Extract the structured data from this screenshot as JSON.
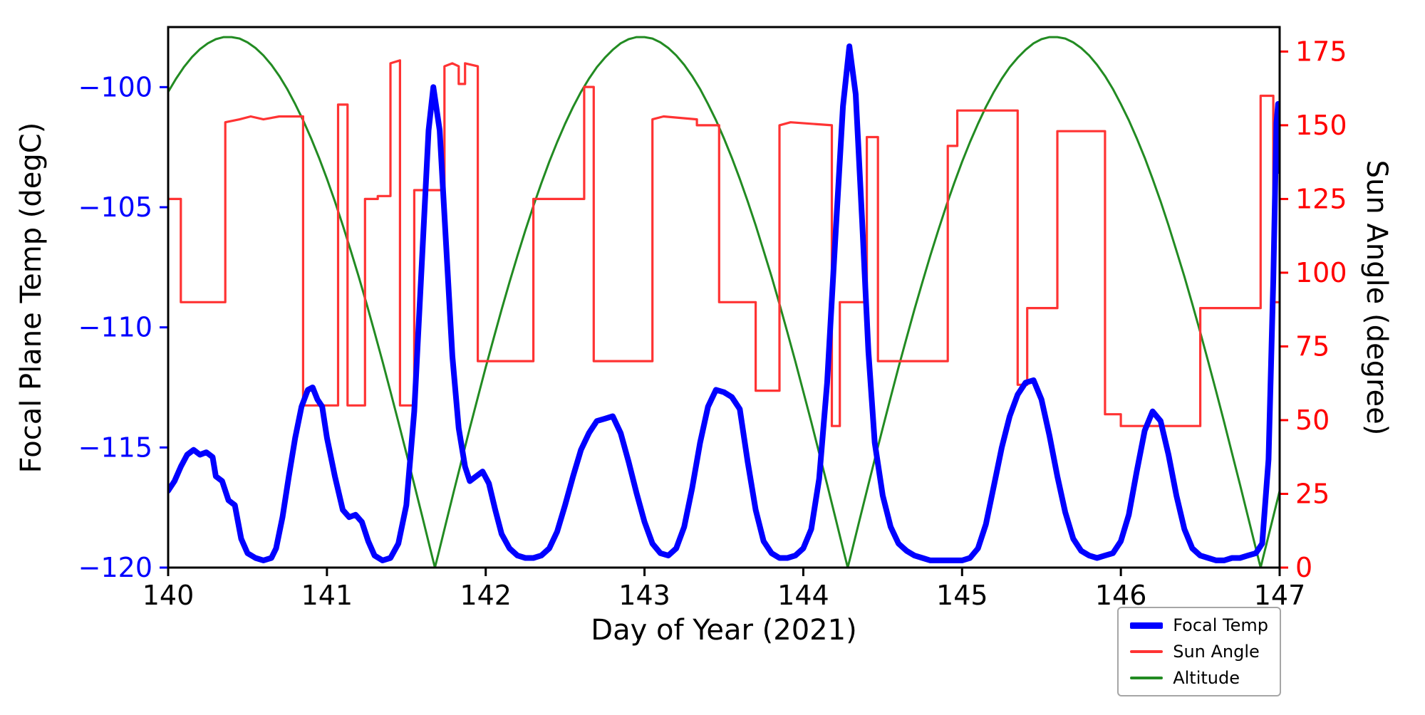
{
  "figure": {
    "background": "#ffffff"
  },
  "chart_data": {
    "type": "line",
    "title": "",
    "x_label": "Day of Year (2021)",
    "y_left_label": "Focal Plane Temp (degC)",
    "y_right_label": "Sun Angle (degree)",
    "x_range": [
      140,
      147
    ],
    "x_ticks": [
      140,
      141,
      142,
      143,
      144,
      145,
      146,
      147
    ],
    "y_left": {
      "range": [
        -120,
        -97.5
      ],
      "ticks": [
        -100,
        -105,
        -110,
        -115,
        -120
      ],
      "color": "#0000ff"
    },
    "y_right": {
      "range": [
        0,
        183.3
      ],
      "ticks": [
        0,
        25,
        50,
        75,
        100,
        125,
        150,
        175
      ],
      "color": "#ff0000"
    },
    "grid": false,
    "spine_color": "#000000",
    "legend": {
      "position": "lower-right-outside",
      "entries": [
        {
          "label": "Focal Temp",
          "color": "#0000ff",
          "line_width": "thick"
        },
        {
          "label": "Sun Angle",
          "color": "#ff3333",
          "line_width": "thin"
        },
        {
          "label": "Altitude",
          "color": "#228b22",
          "line_width": "thin"
        }
      ]
    },
    "series": [
      {
        "name": "Focal Temp",
        "axis": "left",
        "color": "#0000ff",
        "stroke_width": 8,
        "x": [
          140.0,
          140.04,
          140.08,
          140.12,
          140.16,
          140.2,
          140.24,
          140.28,
          140.3,
          140.34,
          140.38,
          140.42,
          140.46,
          140.5,
          140.55,
          140.6,
          140.65,
          140.68,
          140.72,
          140.76,
          140.8,
          140.84,
          140.88,
          140.91,
          140.94,
          140.97,
          141.0,
          141.05,
          141.1,
          141.14,
          141.18,
          141.22,
          141.26,
          141.3,
          141.35,
          141.4,
          141.45,
          141.5,
          141.55,
          141.6,
          141.64,
          141.67,
          141.71,
          141.75,
          141.79,
          141.83,
          141.87,
          141.9,
          141.94,
          141.98,
          142.02,
          142.06,
          142.1,
          142.15,
          142.2,
          142.25,
          142.3,
          142.35,
          142.4,
          142.45,
          142.5,
          142.55,
          142.6,
          142.65,
          142.7,
          142.75,
          142.8,
          142.85,
          142.9,
          142.95,
          143.0,
          143.05,
          143.1,
          143.15,
          143.2,
          143.25,
          143.3,
          143.35,
          143.4,
          143.45,
          143.5,
          143.55,
          143.6,
          143.65,
          143.7,
          143.75,
          143.8,
          143.85,
          143.9,
          143.95,
          144.0,
          144.05,
          144.1,
          144.15,
          144.2,
          144.25,
          144.29,
          144.33,
          144.37,
          144.41,
          144.45,
          144.5,
          144.55,
          144.6,
          144.65,
          144.7,
          144.75,
          144.8,
          144.85,
          144.9,
          144.95,
          145.0,
          145.05,
          145.1,
          145.15,
          145.2,
          145.25,
          145.3,
          145.35,
          145.4,
          145.45,
          145.5,
          145.55,
          145.6,
          145.65,
          145.7,
          145.75,
          145.8,
          145.85,
          145.9,
          145.95,
          146.0,
          146.05,
          146.1,
          146.15,
          146.2,
          146.25,
          146.3,
          146.35,
          146.4,
          146.45,
          146.5,
          146.55,
          146.6,
          146.65,
          146.7,
          146.75,
          146.8,
          146.85,
          146.89,
          146.93,
          146.96,
          146.98,
          146.99,
          147.0
        ],
        "y": [
          -116.8,
          -116.4,
          -115.8,
          -115.3,
          -115.1,
          -115.3,
          -115.2,
          -115.4,
          -116.2,
          -116.4,
          -117.2,
          -117.4,
          -118.8,
          -119.4,
          -119.6,
          -119.7,
          -119.6,
          -119.2,
          -117.9,
          -116.2,
          -114.6,
          -113.3,
          -112.6,
          -112.5,
          -113.0,
          -113.3,
          -114.6,
          -116.2,
          -117.6,
          -117.9,
          -117.8,
          -118.1,
          -118.9,
          -119.5,
          -119.7,
          -119.6,
          -119.0,
          -117.4,
          -113.5,
          -107.0,
          -101.8,
          -100.0,
          -101.8,
          -106.5,
          -111.2,
          -114.2,
          -115.8,
          -116.4,
          -116.2,
          -116.0,
          -116.5,
          -117.6,
          -118.6,
          -119.2,
          -119.5,
          -119.6,
          -119.6,
          -119.5,
          -119.2,
          -118.5,
          -117.4,
          -116.2,
          -115.1,
          -114.4,
          -113.9,
          -113.8,
          -113.7,
          -114.4,
          -115.6,
          -116.9,
          -118.1,
          -119.0,
          -119.4,
          -119.5,
          -119.2,
          -118.3,
          -116.7,
          -114.8,
          -113.3,
          -112.6,
          -112.7,
          -112.9,
          -113.4,
          -115.6,
          -117.6,
          -118.9,
          -119.4,
          -119.6,
          -119.6,
          -119.5,
          -119.2,
          -118.4,
          -116.3,
          -112.3,
          -106.5,
          -100.8,
          -98.3,
          -100.3,
          -105.5,
          -111.0,
          -114.8,
          -117.0,
          -118.3,
          -119.0,
          -119.3,
          -119.5,
          -119.6,
          -119.7,
          -119.7,
          -119.7,
          -119.7,
          -119.7,
          -119.6,
          -119.2,
          -118.2,
          -116.6,
          -115.0,
          -113.7,
          -112.8,
          -112.3,
          -112.2,
          -113.0,
          -114.5,
          -116.2,
          -117.7,
          -118.8,
          -119.3,
          -119.5,
          -119.6,
          -119.5,
          -119.4,
          -118.9,
          -117.8,
          -116.0,
          -114.3,
          -113.5,
          -113.9,
          -115.3,
          -117.0,
          -118.4,
          -119.2,
          -119.5,
          -119.6,
          -119.7,
          -119.7,
          -119.6,
          -119.6,
          -119.5,
          -119.4,
          -119.0,
          -115.5,
          -108.0,
          -101.5,
          -100.7,
          -103.5
        ]
      },
      {
        "name": "Sun Angle",
        "axis": "right",
        "color": "#ff3333",
        "stroke_width": 3.2,
        "x": [
          140.0,
          140.08,
          140.08,
          140.36,
          140.36,
          140.45,
          140.52,
          140.6,
          140.7,
          140.85,
          140.85,
          141.07,
          141.07,
          141.13,
          141.13,
          141.24,
          141.24,
          141.32,
          141.32,
          141.4,
          141.4,
          141.46,
          141.46,
          141.55,
          141.55,
          141.74,
          141.74,
          141.79,
          141.83,
          141.83,
          141.87,
          141.87,
          141.95,
          141.95,
          142.3,
          142.3,
          142.62,
          142.62,
          142.68,
          142.68,
          143.05,
          143.05,
          143.12,
          143.33,
          143.33,
          143.47,
          143.47,
          143.7,
          143.7,
          143.85,
          143.85,
          143.92,
          144.18,
          144.18,
          144.23,
          144.23,
          144.4,
          144.4,
          144.47,
          144.47,
          144.91,
          144.91,
          144.97,
          144.97,
          145.35,
          145.35,
          145.41,
          145.41,
          145.6,
          145.6,
          145.9,
          145.9,
          146.0,
          146.0,
          146.5,
          146.5,
          146.88,
          146.88,
          146.96,
          146.96,
          147.0
        ],
        "y": [
          125,
          125,
          90,
          90,
          151,
          152,
          153,
          152,
          153,
          153,
          55,
          55,
          157,
          157,
          55,
          55,
          125,
          125,
          126,
          126,
          171,
          172,
          55,
          55,
          128,
          128,
          170,
          171,
          170,
          164,
          164,
          171,
          170,
          70,
          70,
          125,
          125,
          163,
          163,
          70,
          70,
          152,
          153,
          152,
          150,
          150,
          90,
          90,
          60,
          60,
          150,
          151,
          150,
          48,
          48,
          90,
          90,
          146,
          146,
          70,
          70,
          143,
          143,
          155,
          155,
          62,
          62,
          88,
          88,
          148,
          148,
          52,
          52,
          48,
          48,
          88,
          88,
          160,
          160,
          90,
          90
        ]
      },
      {
        "name": "Altitude",
        "axis": "right",
        "color": "#228b22",
        "stroke_width": 3,
        "x": [
          140.0,
          140.05,
          140.1,
          140.15,
          140.2,
          140.25,
          140.3,
          140.35,
          140.4,
          140.45,
          140.5,
          140.55,
          140.6,
          140.65,
          140.7,
          140.75,
          140.8,
          140.85,
          140.9,
          140.95,
          141.0,
          141.05,
          141.1,
          141.15,
          141.2,
          141.25,
          141.3,
          141.35,
          141.4,
          141.45,
          141.5,
          141.55,
          141.6,
          141.65,
          141.68,
          141.7,
          141.75,
          141.8,
          141.85,
          141.9,
          141.95,
          142.0,
          142.05,
          142.1,
          142.15,
          142.2,
          142.25,
          142.3,
          142.35,
          142.4,
          142.45,
          142.5,
          142.55,
          142.6,
          142.65,
          142.7,
          142.75,
          142.8,
          142.85,
          142.9,
          142.95,
          143.0,
          143.05,
          143.1,
          143.15,
          143.2,
          143.25,
          143.3,
          143.35,
          143.4,
          143.45,
          143.5,
          143.55,
          143.6,
          143.65,
          143.7,
          143.75,
          143.8,
          143.85,
          143.9,
          143.95,
          144.0,
          144.05,
          144.1,
          144.15,
          144.2,
          144.25,
          144.28,
          144.3,
          144.35,
          144.4,
          144.45,
          144.5,
          144.55,
          144.6,
          144.65,
          144.7,
          144.75,
          144.8,
          144.85,
          144.9,
          144.95,
          145.0,
          145.05,
          145.1,
          145.15,
          145.2,
          145.25,
          145.3,
          145.35,
          145.4,
          145.45,
          145.5,
          145.55,
          145.6,
          145.65,
          145.7,
          145.75,
          145.8,
          145.85,
          145.9,
          145.95,
          146.0,
          146.05,
          146.1,
          146.15,
          146.2,
          146.25,
          146.3,
          146.35,
          146.4,
          146.45,
          146.5,
          146.55,
          146.6,
          146.65,
          146.7,
          146.75,
          146.8,
          146.85,
          146.88,
          146.9,
          146.95,
          147.0
        ],
        "y": [
          161.3,
          165.8,
          169.8,
          173.1,
          175.8,
          177.8,
          179.2,
          179.9,
          179.9,
          179.4,
          178.1,
          176.2,
          173.7,
          170.5,
          166.7,
          162.3,
          157.2,
          151.7,
          145.6,
          139.0,
          131.8,
          124.2,
          116.1,
          107.5,
          98.7,
          89.4,
          79.8,
          69.9,
          59.7,
          49.4,
          38.8,
          28.2,
          17.4,
          6.5,
          0.0,
          4.3,
          15.2,
          26.0,
          36.7,
          47.3,
          57.7,
          67.9,
          77.8,
          87.5,
          96.8,
          105.8,
          114.4,
          122.6,
          130.3,
          137.6,
          144.3,
          150.5,
          156.2,
          161.3,
          165.8,
          169.7,
          172.9,
          175.6,
          177.8,
          179.2,
          179.9,
          179.9,
          179.4,
          178.1,
          176.2,
          173.7,
          170.5,
          166.7,
          162.3,
          157.2,
          151.7,
          145.6,
          139.0,
          131.8,
          124.2,
          116.1,
          107.5,
          98.7,
          89.4,
          79.8,
          69.9,
          59.7,
          49.4,
          38.8,
          28.2,
          17.4,
          6.5,
          0.0,
          4.3,
          15.2,
          26.0,
          36.7,
          47.3,
          57.7,
          67.9,
          77.8,
          87.5,
          96.8,
          105.8,
          114.4,
          122.6,
          130.3,
          137.6,
          144.3,
          150.5,
          156.2,
          161.3,
          165.8,
          169.7,
          172.9,
          175.6,
          177.8,
          179.2,
          179.9,
          179.9,
          179.4,
          178.1,
          176.2,
          173.7,
          170.5,
          166.7,
          162.3,
          157.2,
          151.7,
          145.6,
          139.0,
          131.8,
          124.2,
          116.1,
          107.5,
          98.7,
          89.4,
          79.8,
          69.9,
          59.7,
          49.4,
          38.8,
          28.2,
          17.4,
          6.5,
          0.0,
          4.3,
          15.2,
          26.0
        ]
      }
    ]
  }
}
